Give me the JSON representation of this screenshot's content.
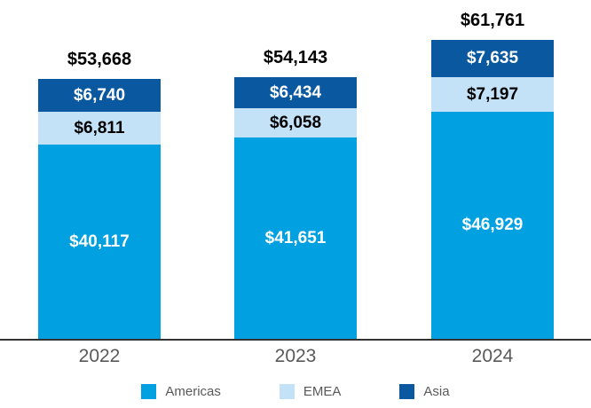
{
  "chart_data": {
    "type": "bar",
    "stacked": true,
    "title": "",
    "xlabel": "",
    "ylabel": "",
    "grid": false,
    "legend_position": "bottom",
    "ylim": [
      0,
      70000
    ],
    "categories": [
      "2022",
      "2023",
      "2024"
    ],
    "series": [
      {
        "name": "Americas",
        "color": "#00a0e1",
        "label_color": "#ffffff",
        "values": [
          40117,
          41651,
          46929
        ],
        "labels": [
          "$40,117",
          "$41,651",
          "$46,929"
        ]
      },
      {
        "name": "EMEA",
        "color": "#c3e2f8",
        "label_color": "#000000",
        "values": [
          6811,
          6058,
          7197
        ],
        "labels": [
          "$6,811",
          "$6,058",
          "$7,197"
        ]
      },
      {
        "name": "Asia",
        "color": "#0a59a0",
        "label_color": "#ffffff",
        "values": [
          6740,
          6434,
          7635
        ],
        "labels": [
          "$6,740",
          "$6,434",
          "$7,635"
        ]
      }
    ],
    "totals": [
      53668,
      54143,
      61761
    ],
    "total_labels": [
      "$53,668",
      "$54,143",
      "$61,761"
    ]
  },
  "colors": {
    "axis_line": "#333333",
    "x_label_text": "#595959",
    "legend_text": "#595959",
    "total_label_text": "#000000"
  }
}
